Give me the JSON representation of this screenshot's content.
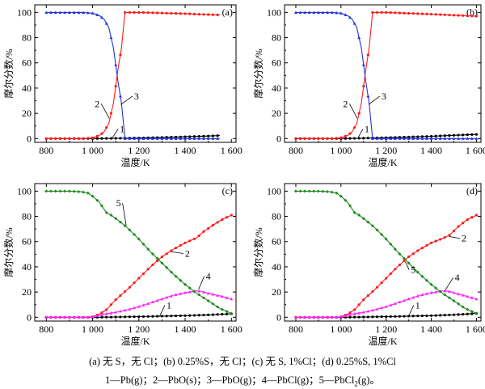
{
  "colors": {
    "pb": "#000000",
    "pbo_s": "#ff1a1a",
    "pbo_g": "#2233dd",
    "pbcl": "#ff22ff",
    "pbcl2": "#1a8a1a"
  },
  "chart_data": [
    {
      "type": "line",
      "panel_tag": "(a)",
      "xlabel": "温度/K",
      "ylabel": "摩尔分数/%",
      "xlim": [
        750,
        1620
      ],
      "ylim": [
        -3,
        106
      ],
      "x_ticks": [
        "800",
        "1 000",
        "1 200",
        "1 400",
        "1 600"
      ],
      "x_tick_values": [
        800,
        1000,
        1200,
        1400,
        1600
      ],
      "y_ticks": [
        "0",
        "20",
        "40",
        "60",
        "80",
        "100"
      ],
      "y_tick_values": [
        0,
        20,
        40,
        60,
        80,
        100
      ],
      "series": [
        {
          "name": "1",
          "color_key": "pb",
          "points": [
            [
              800,
              0
            ],
            [
              1000,
              0
            ],
            [
              1100,
              0.2
            ],
            [
              1200,
              0.5
            ],
            [
              1300,
              0.9
            ],
            [
              1400,
              1.4
            ],
            [
              1500,
              2
            ],
            [
              1550,
              2.4
            ]
          ]
        },
        {
          "name": "2",
          "color_key": "pbo_s",
          "points": [
            [
              800,
              0
            ],
            [
              900,
              0
            ],
            [
              960,
              0
            ],
            [
              1000,
              0.6
            ],
            [
              1030,
              2.5
            ],
            [
              1050,
              5.5
            ],
            [
              1070,
              12
            ],
            [
              1090,
              28
            ],
            [
              1110,
              55
            ],
            [
              1125,
              72
            ],
            [
              1140,
              100
            ],
            [
              1200,
              100
            ],
            [
              1300,
              99.5
            ],
            [
              1400,
              99
            ],
            [
              1500,
              98.3
            ],
            [
              1550,
              98
            ]
          ]
        },
        {
          "name": "3",
          "color_key": "pbo_g",
          "points": [
            [
              800,
              100
            ],
            [
              900,
              100
            ],
            [
              960,
              100
            ],
            [
              1000,
              99.4
            ],
            [
              1030,
              97.5
            ],
            [
              1050,
              94.5
            ],
            [
              1070,
              88
            ],
            [
              1090,
              72
            ],
            [
              1110,
              45
            ],
            [
              1125,
              28
            ],
            [
              1140,
              0
            ],
            [
              1200,
              0
            ],
            [
              1400,
              0
            ],
            [
              1550,
              0
            ]
          ]
        }
      ],
      "annotations": [
        {
          "text": "1",
          "x": 1128,
          "y": 5,
          "ax": 1085,
          "ay": 0.5
        },
        {
          "text": "2",
          "x": 1020,
          "y": 25,
          "ax": 1072,
          "ay": 16
        },
        {
          "text": "3",
          "x": 1190,
          "y": 31,
          "ax": 1122,
          "ay": 27
        }
      ]
    },
    {
      "type": "line",
      "panel_tag": "(b)",
      "xlabel": "温度/K",
      "ylabel": "摩尔分数/%",
      "xlim": [
        750,
        1620
      ],
      "ylim": [
        -3,
        106
      ],
      "x_ticks": [
        "800",
        "1 000",
        "1 200",
        "1 400",
        "1 600"
      ],
      "x_tick_values": [
        800,
        1000,
        1200,
        1400,
        1600
      ],
      "y_ticks": [
        "0",
        "20",
        "40",
        "60",
        "80",
        "100"
      ],
      "y_tick_values": [
        0,
        20,
        40,
        60,
        80,
        100
      ],
      "series": [
        {
          "name": "1",
          "color_key": "pb",
          "points": [
            [
              800,
              0
            ],
            [
              1000,
              0
            ],
            [
              1100,
              0.3
            ],
            [
              1200,
              0.7
            ],
            [
              1300,
              1.2
            ],
            [
              1400,
              1.8
            ],
            [
              1500,
              2.6
            ],
            [
              1600,
              3.3
            ]
          ]
        },
        {
          "name": "2",
          "color_key": "pbo_s",
          "points": [
            [
              800,
              0
            ],
            [
              900,
              0
            ],
            [
              960,
              0
            ],
            [
              1000,
              0.6
            ],
            [
              1030,
              2.5
            ],
            [
              1050,
              5.5
            ],
            [
              1070,
              12
            ],
            [
              1090,
              28
            ],
            [
              1110,
              55
            ],
            [
              1125,
              72
            ],
            [
              1140,
              100
            ],
            [
              1200,
              100
            ],
            [
              1300,
              99.3
            ],
            [
              1400,
              98.6
            ],
            [
              1500,
              97.8
            ],
            [
              1600,
              97
            ]
          ]
        },
        {
          "name": "3",
          "color_key": "pbo_g",
          "points": [
            [
              800,
              100
            ],
            [
              900,
              100
            ],
            [
              960,
              100
            ],
            [
              1000,
              99.4
            ],
            [
              1030,
              97.5
            ],
            [
              1050,
              94.5
            ],
            [
              1070,
              88
            ],
            [
              1090,
              72
            ],
            [
              1110,
              45
            ],
            [
              1125,
              28
            ],
            [
              1140,
              0
            ],
            [
              1200,
              0
            ],
            [
              1400,
              0
            ],
            [
              1600,
              0
            ]
          ]
        }
      ],
      "annotations": [
        {
          "text": "1",
          "x": 1115,
          "y": 5,
          "ax": 1075,
          "ay": 0.5
        },
        {
          "text": "2",
          "x": 1020,
          "y": 25,
          "ax": 1072,
          "ay": 16
        },
        {
          "text": "3",
          "x": 1190,
          "y": 31,
          "ax": 1122,
          "ay": 27
        }
      ]
    },
    {
      "type": "line",
      "panel_tag": "(c)",
      "xlabel": "温度/K",
      "ylabel": "摩尔分数/%",
      "xlim": [
        750,
        1620
      ],
      "ylim": [
        -3,
        106
      ],
      "x_ticks": [
        "800",
        "1 000",
        "1 200",
        "1 400",
        "1 600"
      ],
      "x_tick_values": [
        800,
        1000,
        1200,
        1400,
        1600
      ],
      "y_ticks": [
        "0",
        "20",
        "40",
        "60",
        "80",
        "100"
      ],
      "y_tick_values": [
        0,
        20,
        40,
        60,
        80,
        100
      ],
      "series": [
        {
          "name": "1",
          "color_key": "pb",
          "points": [
            [
              800,
              0
            ],
            [
              1000,
              0
            ],
            [
              1100,
              0.2
            ],
            [
              1200,
              0.5
            ],
            [
              1300,
              0.9
            ],
            [
              1400,
              1.3
            ],
            [
              1500,
              1.9
            ],
            [
              1600,
              2.8
            ]
          ]
        },
        {
          "name": "2",
          "color_key": "pbo_s",
          "points": [
            [
              800,
              0
            ],
            [
              980,
              0
            ],
            [
              1000,
              0.5
            ],
            [
              1030,
              2.5
            ],
            [
              1060,
              6
            ],
            [
              1100,
              14
            ],
            [
              1150,
              22
            ],
            [
              1200,
              31
            ],
            [
              1250,
              40
            ],
            [
              1300,
              48
            ],
            [
              1350,
              54
            ],
            [
              1400,
              59
            ],
            [
              1450,
              63
            ],
            [
              1480,
              68
            ],
            [
              1520,
              73
            ],
            [
              1560,
              77.5
            ],
            [
              1600,
              81
            ]
          ]
        },
        {
          "name": "4",
          "color_key": "pbcl",
          "points": [
            [
              800,
              0
            ],
            [
              980,
              0
            ],
            [
              1000,
              0.5
            ],
            [
              1050,
              2.5
            ],
            [
              1100,
              4
            ],
            [
              1150,
              6
            ],
            [
              1200,
              8.5
            ],
            [
              1250,
              11.5
            ],
            [
              1300,
              14.5
            ],
            [
              1350,
              17.5
            ],
            [
              1400,
              19.5
            ],
            [
              1450,
              21
            ],
            [
              1470,
              20.5
            ],
            [
              1500,
              19
            ],
            [
              1550,
              17
            ],
            [
              1600,
              14.5
            ]
          ]
        },
        {
          "name": "5",
          "color_key": "pbcl2",
          "points": [
            [
              800,
              100
            ],
            [
              900,
              100
            ],
            [
              950,
              99.5
            ],
            [
              980,
              98.5
            ],
            [
              1000,
              96
            ],
            [
              1030,
              91
            ],
            [
              1060,
              83
            ],
            [
              1080,
              81
            ],
            [
              1110,
              77
            ],
            [
              1150,
              71
            ],
            [
              1200,
              62
            ],
            [
              1250,
              52
            ],
            [
              1300,
              43
            ],
            [
              1350,
              34
            ],
            [
              1400,
              26
            ],
            [
              1450,
              19
            ],
            [
              1500,
              13
            ],
            [
              1550,
              7
            ],
            [
              1600,
              3
            ]
          ]
        }
      ],
      "annotations": [
        {
          "text": "1",
          "x": 1330,
          "y": 7,
          "ax": 1290,
          "ay": 1
        },
        {
          "text": "2",
          "x": 1410,
          "y": 48,
          "ax": 1340,
          "ay": 52
        },
        {
          "text": "4",
          "x": 1500,
          "y": 30,
          "ax": 1458,
          "ay": 22
        },
        {
          "text": "5",
          "x": 1112,
          "y": 88,
          "ax": 1145,
          "ay": 73
        }
      ]
    },
    {
      "type": "line",
      "panel_tag": "(d)",
      "xlabel": "温度/K",
      "ylabel": "摩尔分数/%",
      "xlim": [
        750,
        1620
      ],
      "ylim": [
        -3,
        106
      ],
      "x_ticks": [
        "800",
        "1 000",
        "1 200",
        "1 400",
        "1 600"
      ],
      "x_tick_values": [
        800,
        1000,
        1200,
        1400,
        1600
      ],
      "y_ticks": [
        "0",
        "20",
        "40",
        "60",
        "80",
        "100"
      ],
      "y_tick_values": [
        0,
        20,
        40,
        60,
        80,
        100
      ],
      "series": [
        {
          "name": "1",
          "color_key": "pb",
          "points": [
            [
              800,
              0
            ],
            [
              1000,
              0
            ],
            [
              1100,
              0.2
            ],
            [
              1200,
              0.5
            ],
            [
              1300,
              0.9
            ],
            [
              1400,
              1.3
            ],
            [
              1500,
              2
            ],
            [
              1600,
              3
            ]
          ]
        },
        {
          "name": "2",
          "color_key": "pbo_s",
          "points": [
            [
              800,
              0
            ],
            [
              980,
              0
            ],
            [
              1000,
              0.5
            ],
            [
              1030,
              2.5
            ],
            [
              1060,
              6
            ],
            [
              1100,
              14
            ],
            [
              1150,
              22
            ],
            [
              1200,
              31
            ],
            [
              1250,
              40
            ],
            [
              1300,
              48
            ],
            [
              1350,
              54
            ],
            [
              1400,
              59
            ],
            [
              1450,
              62.5
            ],
            [
              1480,
              65
            ],
            [
              1520,
              72
            ],
            [
              1560,
              77.5
            ],
            [
              1600,
              81
            ]
          ]
        },
        {
          "name": "4",
          "color_key": "pbcl",
          "points": [
            [
              800,
              0
            ],
            [
              980,
              0
            ],
            [
              1000,
              0.5
            ],
            [
              1050,
              2.5
            ],
            [
              1100,
              4
            ],
            [
              1150,
              6
            ],
            [
              1200,
              8.5
            ],
            [
              1250,
              11.5
            ],
            [
              1300,
              14.5
            ],
            [
              1350,
              17.5
            ],
            [
              1400,
              19.5
            ],
            [
              1450,
              21
            ],
            [
              1480,
              20.5
            ],
            [
              1500,
              19.5
            ],
            [
              1550,
              17
            ],
            [
              1600,
              14.5
            ]
          ]
        },
        {
          "name": "5",
          "color_key": "pbcl2",
          "points": [
            [
              800,
              100
            ],
            [
              900,
              100
            ],
            [
              950,
              99.5
            ],
            [
              980,
              98.5
            ],
            [
              1000,
              96
            ],
            [
              1030,
              91
            ],
            [
              1060,
              83
            ],
            [
              1080,
              81
            ],
            [
              1110,
              77
            ],
            [
              1150,
              71
            ],
            [
              1200,
              62
            ],
            [
              1250,
              52
            ],
            [
              1300,
              43
            ],
            [
              1350,
              34
            ],
            [
              1400,
              26
            ],
            [
              1450,
              19
            ],
            [
              1500,
              13
            ],
            [
              1550,
              7
            ],
            [
              1600,
              3
            ]
          ]
        }
      ],
      "annotations": [
        {
          "text": "1",
          "x": 1340,
          "y": 7,
          "ax": 1300,
          "ay": 1
        },
        {
          "text": "2",
          "x": 1545,
          "y": 60,
          "ax": 1480,
          "ay": 64
        },
        {
          "text": "4",
          "x": 1515,
          "y": 29,
          "ax": 1462,
          "ay": 21.5
        },
        {
          "text": "5",
          "x": 1320,
          "y": 35,
          "ax": 1285,
          "ay": 44
        }
      ]
    }
  ],
  "captions": {
    "line1": "(a)  无 S，无 Cl；(b) 0.25%S，无 Cl；(c)  无 S, 1%Cl；(d) 0.25%S, 1%Cl",
    "line2_before": "1—Pb(g)；2—PbO(s)；3—PbO(g)；4—PbCl(g)；5—PbCl",
    "line2_sub": "2",
    "line2_after": "(g)。"
  }
}
